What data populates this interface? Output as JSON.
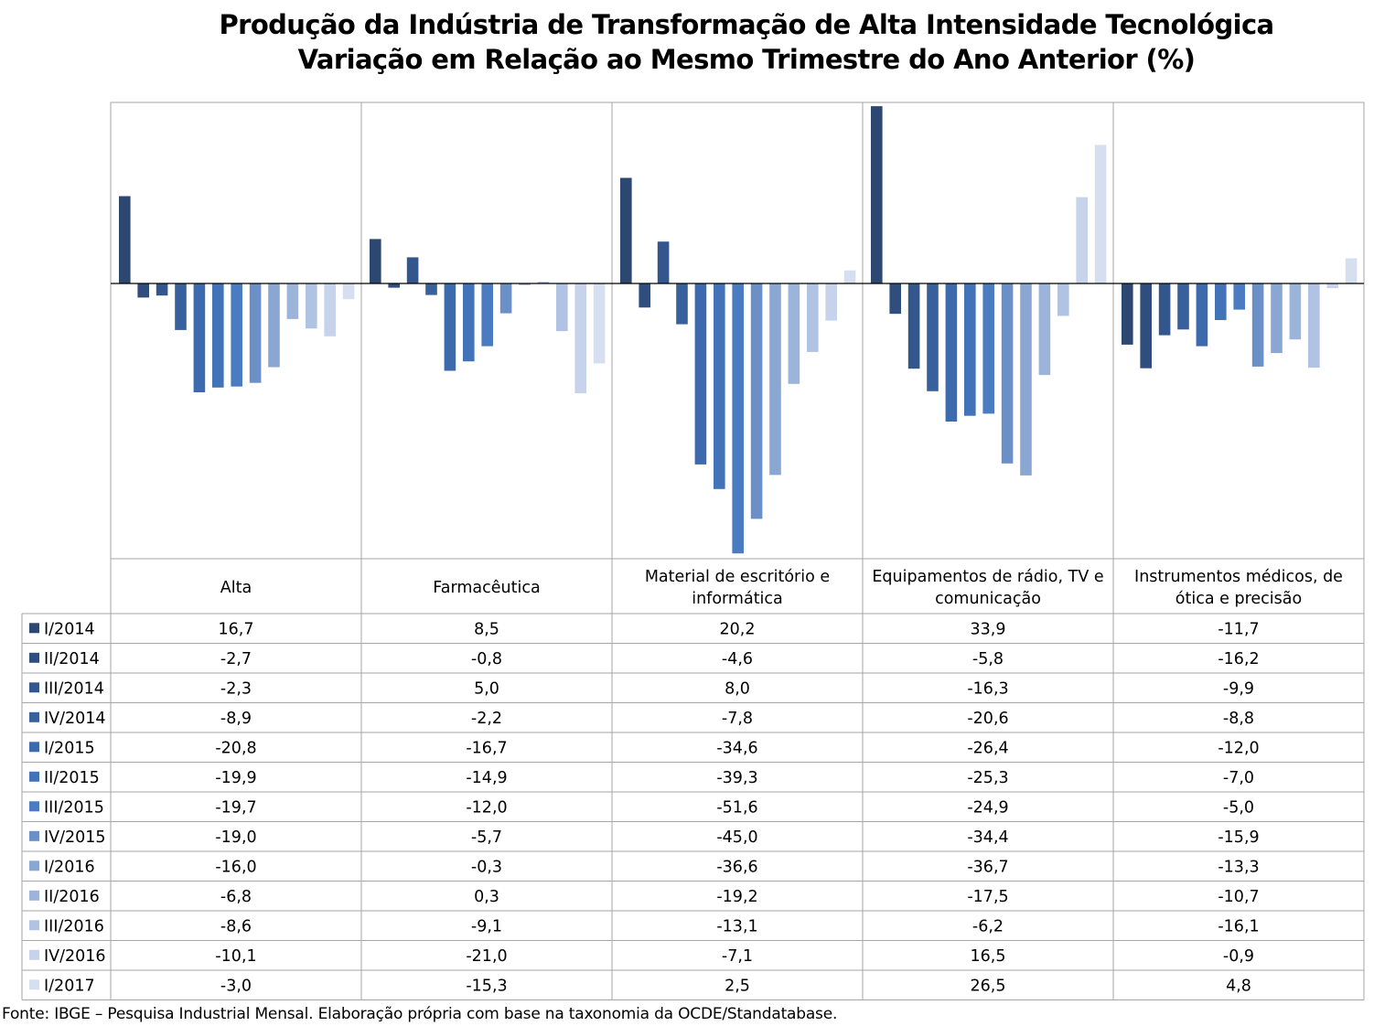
{
  "title": "Produção da Indústria de Transformação de Alta Intensidade Tecnológica",
  "subtitle": "Variação em Relação ao Mesmo Trimestre do Ano Anterior (%)",
  "source": "Fonte: IBGE – Pesquisa Industrial Mensal. Elaboração própria com base na taxonomia da OCDE/Standatabase.",
  "chart_data": {
    "type": "bar",
    "title": "Produção da Indústria de Transformação de Alta Intensidade Tecnológica",
    "subtitle": "Variação em Relação ao Mesmo Trimestre do Ano Anterior (%)",
    "categories": [
      [
        "Alta"
      ],
      [
        "Farmacêutica"
      ],
      [
        "Material de escritório e",
        "informática"
      ],
      [
        "Equipamentos de rádio, TV e",
        "comunicação"
      ],
      [
        "Instrumentos médicos, de",
        "ótica e precisão"
      ]
    ],
    "ylim": [
      -51.6,
      33.9
    ],
    "grid": false,
    "legend": "data-table-left",
    "series": [
      {
        "name": "I/2014",
        "color": "#2c4770",
        "values": [
          16.7,
          8.5,
          20.2,
          33.9,
          -11.7
        ],
        "labels": [
          "16,7",
          "8,5",
          "20,2",
          "33,9",
          "-11,7"
        ]
      },
      {
        "name": "II/2014",
        "color": "#2f4e7e",
        "values": [
          -2.7,
          -0.8,
          -4.6,
          -5.8,
          -16.2
        ],
        "labels": [
          "-2,7",
          "-0,8",
          "-4,6",
          "-5,8",
          "-16,2"
        ]
      },
      {
        "name": "III/2014",
        "color": "#33578d",
        "values": [
          -2.3,
          5.0,
          8.0,
          -16.3,
          -9.9
        ],
        "labels": [
          "-2,3",
          "5,0",
          "8,0",
          "-16,3",
          "-9,9"
        ]
      },
      {
        "name": "IV/2014",
        "color": "#37609d",
        "values": [
          -8.9,
          -2.2,
          -7.8,
          -20.6,
          -8.8
        ],
        "labels": [
          "-8,9",
          "-2,2",
          "-7,8",
          "-20,6",
          "-8,8"
        ]
      },
      {
        "name": "I/2015",
        "color": "#3d69ad",
        "values": [
          -20.8,
          -16.7,
          -34.6,
          -26.4,
          -12.0
        ],
        "labels": [
          "-20,8",
          "-16,7",
          "-34,6",
          "-26,4",
          "-12,0"
        ]
      },
      {
        "name": "II/2015",
        "color": "#4272b8",
        "values": [
          -19.9,
          -14.9,
          -39.3,
          -25.3,
          -7.0
        ],
        "labels": [
          "-19,9",
          "-14,9",
          "-39,3",
          "-25,3",
          "-7,0"
        ]
      },
      {
        "name": "III/2015",
        "color": "#4b7cc1",
        "values": [
          -19.7,
          -12.0,
          -51.6,
          -24.9,
          -5.0
        ],
        "labels": [
          "-19,7",
          "-12,0",
          "-51,6",
          "-24,9",
          "-5,0"
        ]
      },
      {
        "name": "IV/2015",
        "color": "#6b8fc7",
        "values": [
          -19.0,
          -5.7,
          -45.0,
          -34.4,
          -15.9
        ],
        "labels": [
          "-19,0",
          "-5,7",
          "-45,0",
          "-34,4",
          "-15,9"
        ]
      },
      {
        "name": "I/2016",
        "color": "#8aa6d2",
        "values": [
          -16.0,
          -0.3,
          -36.6,
          -36.7,
          -13.3
        ],
        "labels": [
          "-16,0",
          "-0,3",
          "-36,6",
          "-36,7",
          "-13,3"
        ]
      },
      {
        "name": "II/2016",
        "color": "#9db4da",
        "values": [
          -6.8,
          0.3,
          -19.2,
          -17.5,
          -10.7
        ],
        "labels": [
          "-6,8",
          "0,3",
          "-19,2",
          "-17,5",
          "-10,7"
        ]
      },
      {
        "name": "III/2016",
        "color": "#b1c3e2",
        "values": [
          -8.6,
          -9.1,
          -13.1,
          -6.2,
          -16.1
        ],
        "labels": [
          "-8,6",
          "-9,1",
          "-13,1",
          "-6,2",
          "-16,1"
        ]
      },
      {
        "name": "IV/2016",
        "color": "#c6d3ea",
        "values": [
          -10.1,
          -21.0,
          -7.1,
          16.5,
          -0.9
        ],
        "labels": [
          "-10,1",
          "-21,0",
          "-7,1",
          "16,5",
          "-0,9"
        ]
      },
      {
        "name": "I/2017",
        "color": "#d5dff0",
        "values": [
          -3.0,
          -15.3,
          2.5,
          26.5,
          4.8
        ],
        "labels": [
          "-3,0",
          "-15,3",
          "2,5",
          "26,5",
          "4,8"
        ]
      }
    ]
  }
}
